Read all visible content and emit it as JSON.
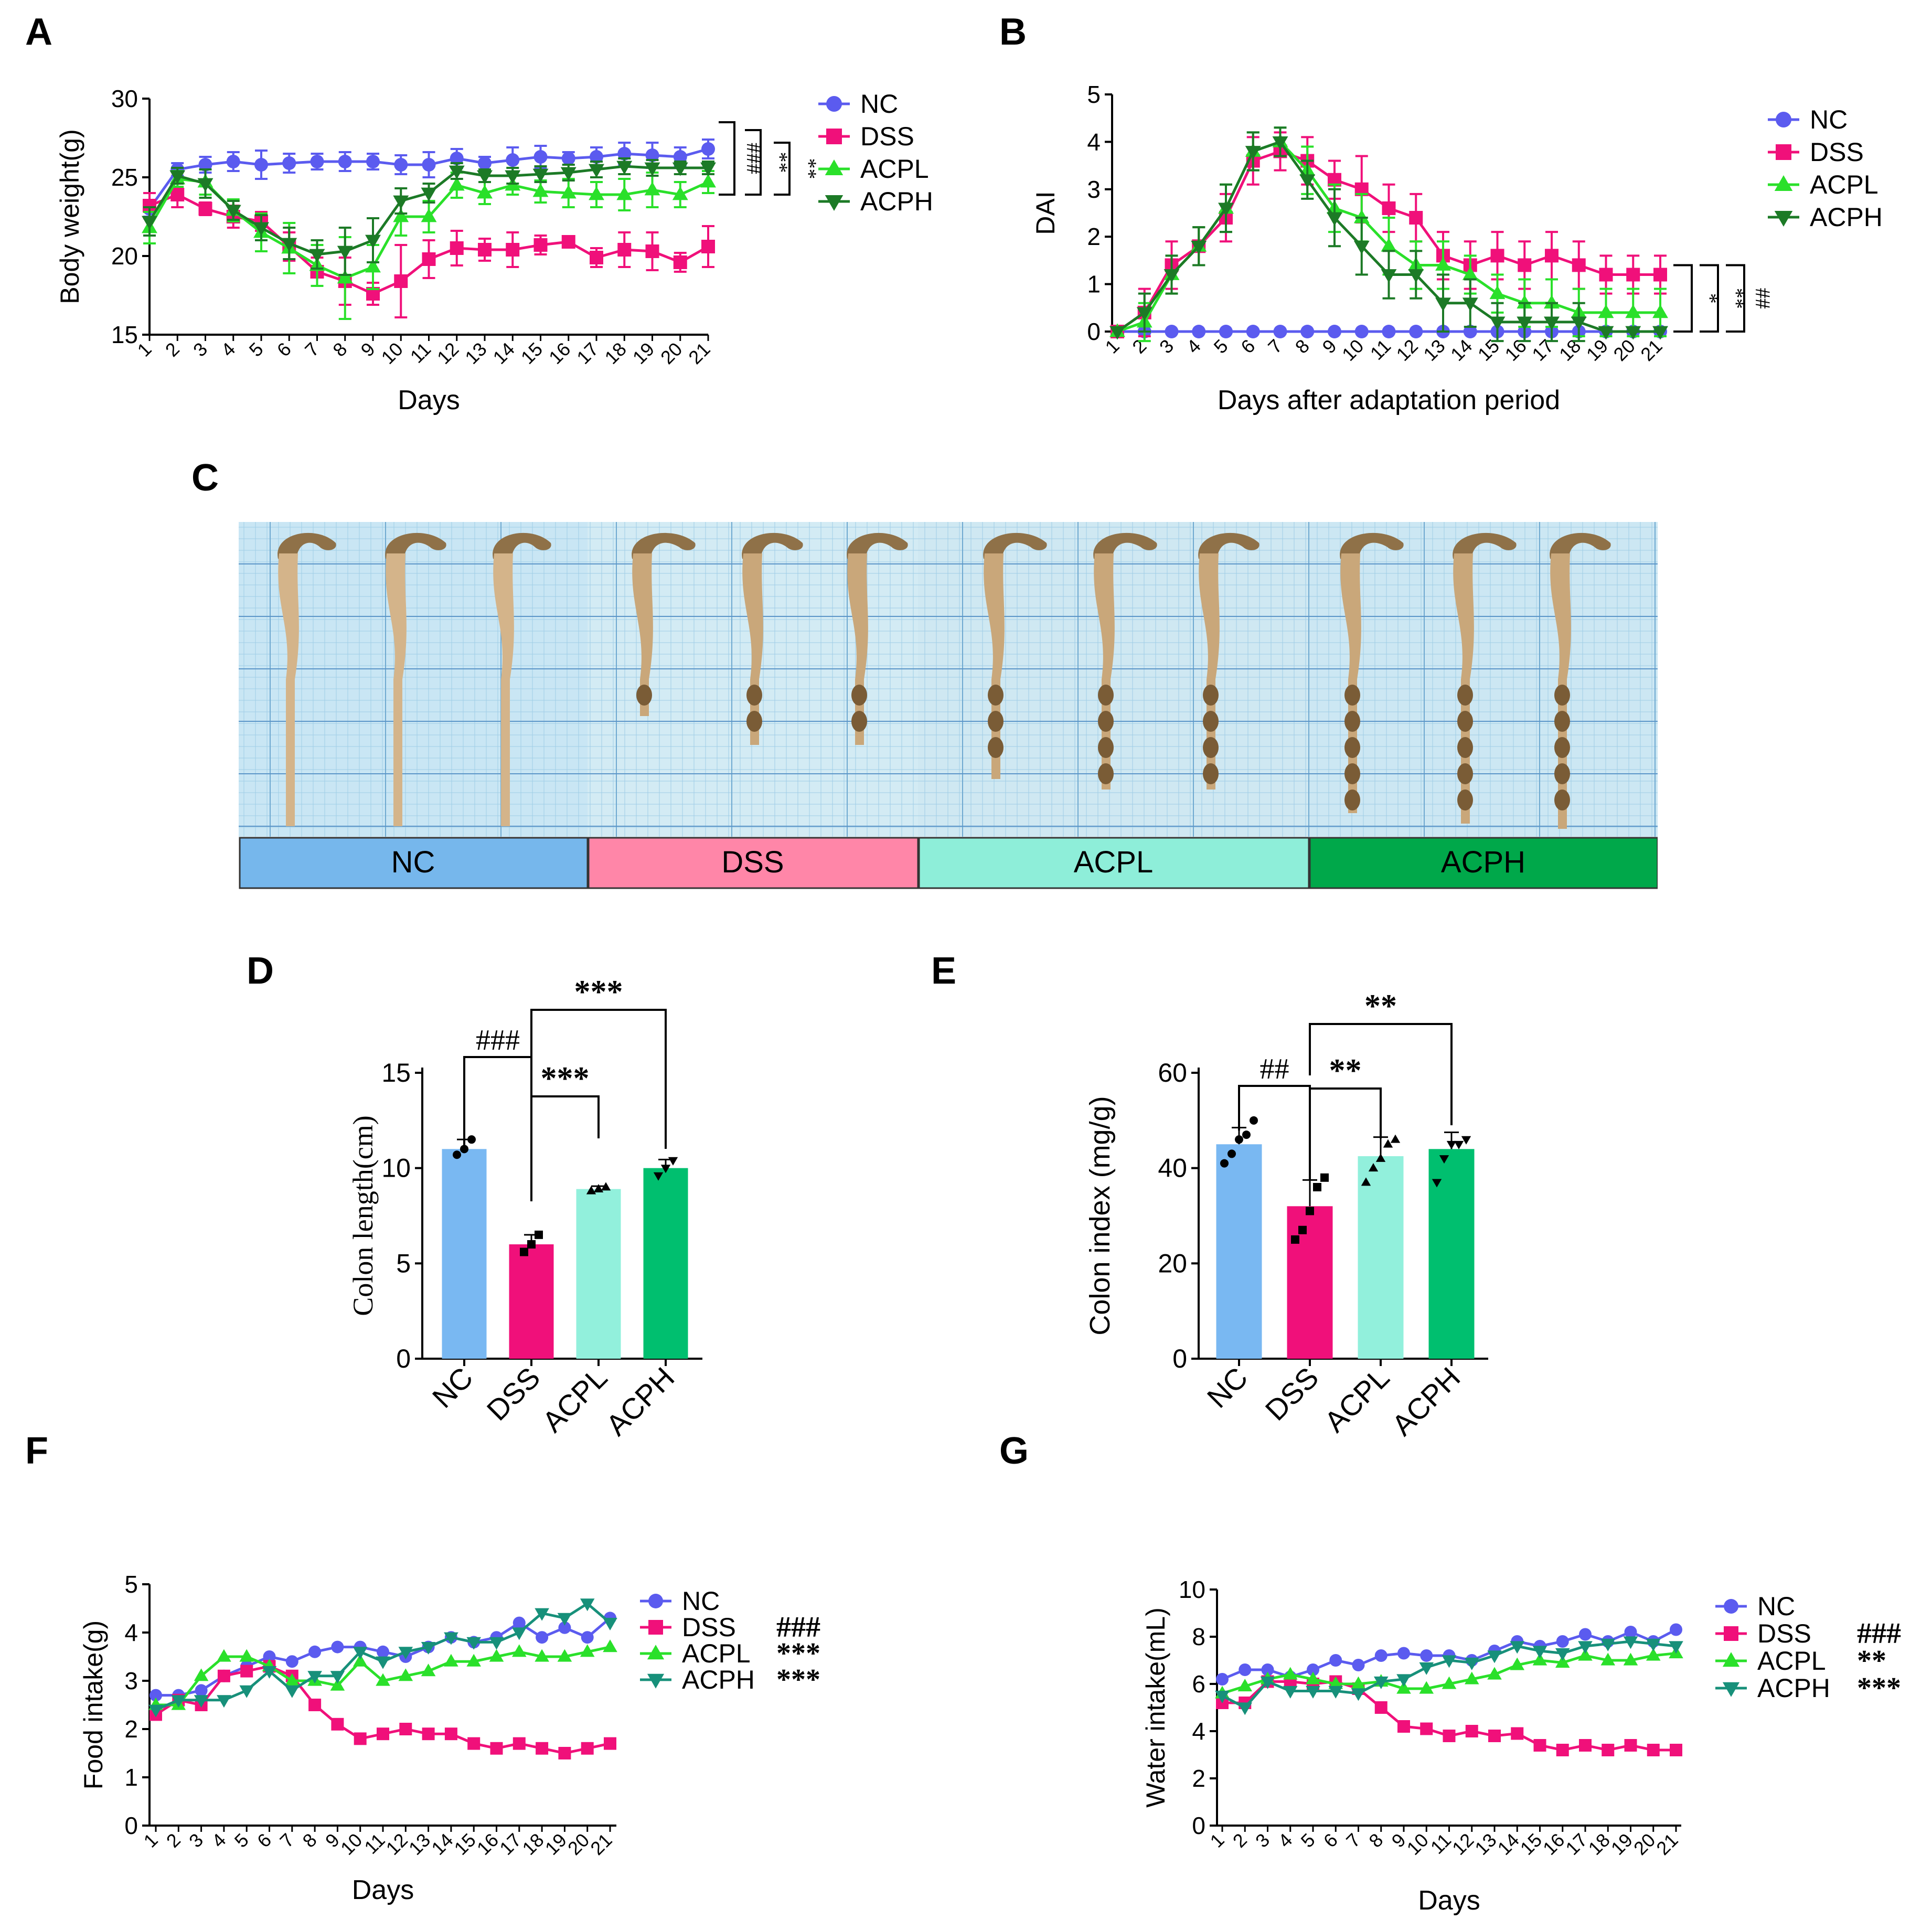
{
  "panel_letters": {
    "a": "A",
    "b": "B",
    "c": "C",
    "d": "D",
    "e": "E",
    "f": "F",
    "g": "G"
  },
  "colors": {
    "NC": "#5b5bef",
    "DSS": "#f0107a",
    "ACPL": "#2ae02a",
    "ACPH": "#1c7a26",
    "bar_NC": "#79b8f2",
    "bar_DSS": "#f0107a",
    "bar_ACPL": "#92f0dc",
    "bar_ACPH": "#00bf6f",
    "line_F_ACPH": "#17907a",
    "line_G_ACPH": "#17907a"
  },
  "photo_legend": [
    "NC",
    "DSS",
    "ACPL",
    "ACPH"
  ],
  "photo_legend_colors": [
    "#76b7ec",
    "#ff86a8",
    "#8eeed9",
    "#00a84a"
  ],
  "chart_data": [
    {
      "id": "A",
      "type": "line",
      "ylabel": "Body weight(g)",
      "xlabel": "Days",
      "ylim": [
        15,
        30
      ],
      "yticks": [
        15,
        20,
        25,
        30
      ],
      "x": [
        1,
        2,
        3,
        4,
        5,
        6,
        7,
        8,
        9,
        10,
        11,
        12,
        13,
        14,
        15,
        16,
        17,
        18,
        19,
        20,
        21
      ],
      "series": [
        {
          "name": "NC",
          "marker": "circle",
          "values": [
            23.0,
            25.5,
            25.8,
            26.0,
            25.8,
            25.9,
            26.0,
            26.0,
            26.0,
            25.8,
            25.8,
            26.2,
            25.9,
            26.1,
            26.3,
            26.2,
            26.3,
            26.5,
            26.4,
            26.3,
            26.8
          ],
          "err": [
            0.5,
            0.4,
            0.5,
            0.6,
            0.9,
            0.6,
            0.5,
            0.6,
            0.5,
            0.6,
            0.8,
            0.6,
            0.4,
            0.8,
            0.7,
            0.4,
            0.6,
            0.7,
            0.8,
            0.6,
            0.6
          ]
        },
        {
          "name": "DSS",
          "marker": "square",
          "values": [
            23.2,
            23.9,
            23.0,
            22.5,
            22.2,
            20.6,
            19.0,
            18.4,
            17.6,
            18.4,
            19.8,
            20.5,
            20.4,
            20.4,
            20.7,
            20.9,
            19.9,
            20.4,
            20.3,
            19.6,
            20.6
          ],
          "err": [
            0.8,
            0.8,
            0.4,
            0.7,
            0.6,
            0.9,
            0.9,
            1.5,
            0.7,
            2.3,
            1.2,
            1.1,
            0.7,
            1.1,
            0.6,
            0.3,
            0.6,
            1.1,
            1.2,
            0.6,
            1.3
          ]
        },
        {
          "name": "ACPL",
          "marker": "triangle-up",
          "values": [
            21.8,
            24.9,
            24.7,
            22.9,
            21.5,
            20.5,
            19.4,
            18.6,
            19.3,
            22.5,
            22.5,
            24.5,
            24.0,
            24.5,
            24.1,
            24.0,
            23.9,
            23.9,
            24.2,
            23.9,
            24.7
          ],
          "err": [
            1.0,
            0.5,
            0.8,
            0.7,
            1.2,
            1.6,
            1.3,
            2.6,
            1.4,
            1.2,
            1.0,
            0.8,
            0.7,
            0.6,
            0.7,
            0.9,
            0.8,
            1.0,
            1.1,
            0.8,
            0.7
          ]
        },
        {
          "name": "ACPH",
          "marker": "triangle-down",
          "values": [
            22.2,
            25.1,
            24.6,
            22.9,
            21.8,
            20.8,
            20.1,
            20.3,
            21.0,
            23.5,
            24.0,
            25.4,
            25.1,
            25.1,
            25.2,
            25.3,
            25.5,
            25.7,
            25.6,
            25.6,
            25.6
          ],
          "err": [
            0.9,
            0.5,
            0.9,
            0.6,
            0.8,
            1.0,
            0.9,
            1.5,
            1.4,
            0.8,
            0.6,
            0.5,
            0.4,
            0.5,
            0.5,
            0.5,
            0.5,
            0.5,
            0.5,
            0.4,
            0.4
          ]
        }
      ],
      "sig": [
        "###",
        "**",
        "**"
      ]
    },
    {
      "id": "B",
      "type": "line",
      "ylabel": "DAI",
      "xlabel": "Days after adaptation period",
      "ylim": [
        0,
        5
      ],
      "yticks": [
        0,
        1,
        2,
        3,
        4,
        5
      ],
      "x": [
        1,
        2,
        3,
        4,
        5,
        6,
        7,
        8,
        9,
        10,
        11,
        12,
        13,
        14,
        15,
        16,
        17,
        18,
        19,
        20,
        21
      ],
      "series": [
        {
          "name": "NC",
          "marker": "circle",
          "values": [
            0,
            0,
            0,
            0,
            0,
            0,
            0,
            0,
            0,
            0,
            0,
            0,
            0,
            0,
            0,
            0,
            0,
            0,
            0,
            0,
            0
          ],
          "err": [
            0,
            0,
            0,
            0,
            0,
            0,
            0,
            0,
            0,
            0,
            0,
            0,
            0,
            0,
            0,
            0,
            0,
            0,
            0,
            0,
            0
          ]
        },
        {
          "name": "DSS",
          "marker": "square",
          "values": [
            0,
            0.4,
            1.4,
            1.8,
            2.4,
            3.6,
            3.8,
            3.6,
            3.2,
            3.0,
            2.6,
            2.4,
            1.6,
            1.4,
            1.6,
            1.4,
            1.6,
            1.4,
            1.2,
            1.2,
            1.2
          ],
          "err": [
            0,
            0.5,
            0.5,
            0.4,
            0.5,
            0.5,
            0.4,
            0.5,
            0.4,
            0.7,
            0.5,
            0.5,
            0.5,
            0.5,
            0.5,
            0.5,
            0.5,
            0.5,
            0.4,
            0.4,
            0.4
          ]
        },
        {
          "name": "ACPL",
          "marker": "triangle-up",
          "values": [
            0,
            0.2,
            1.2,
            1.8,
            2.6,
            3.8,
            4.0,
            3.4,
            2.6,
            2.4,
            1.8,
            1.4,
            1.4,
            1.2,
            0.8,
            0.6,
            0.6,
            0.4,
            0.4,
            0.4,
            0.4
          ],
          "err": [
            0,
            0.4,
            0.4,
            0.4,
            0.5,
            0.4,
            0.3,
            0.5,
            0.5,
            0.5,
            0.6,
            0.5,
            0.5,
            0.4,
            0.4,
            0.5,
            0.5,
            0.5,
            0.5,
            0.5,
            0.5
          ]
        },
        {
          "name": "ACPH",
          "marker": "triangle-down",
          "values": [
            0,
            0.4,
            1.2,
            1.8,
            2.6,
            3.8,
            4.0,
            3.2,
            2.4,
            1.8,
            1.2,
            1.2,
            0.6,
            0.6,
            0.2,
            0.2,
            0.2,
            0.2,
            0,
            0,
            0
          ],
          "err": [
            0,
            0.4,
            0.4,
            0.4,
            0.5,
            0.4,
            0.3,
            0.4,
            0.6,
            0.6,
            0.5,
            0.5,
            0.6,
            0.5,
            0.4,
            0.4,
            0.4,
            0.4,
            0,
            0,
            0
          ]
        }
      ],
      "sig": [
        "*",
        "**",
        "##"
      ]
    },
    {
      "id": "D",
      "type": "bar",
      "ylabel": "Colon length(cm)",
      "categories": [
        "NC",
        "DSS",
        "ACPL",
        "ACPH"
      ],
      "values": [
        11.0,
        6.0,
        8.9,
        10.0
      ],
      "err": [
        0.5,
        0.5,
        0.15,
        0.45
      ],
      "points": [
        [
          10.7,
          11.0,
          11.5
        ],
        [
          5.6,
          6.0,
          6.5
        ],
        [
          8.8,
          8.9,
          9.0
        ],
        [
          9.6,
          10.0,
          10.4
        ]
      ],
      "point_markers": [
        "circle",
        "square",
        "triangle-up",
        "triangle-down"
      ],
      "ylim": [
        0,
        15
      ],
      "yticks": [
        0,
        5,
        10,
        15
      ],
      "sig": {
        "top": "***",
        "left": "###",
        "mid": "***"
      }
    },
    {
      "id": "E",
      "type": "bar",
      "ylabel": "Colon index (mg/g)",
      "categories": [
        "NC",
        "DSS",
        "ACPL",
        "ACPH"
      ],
      "values": [
        45,
        32,
        42.5,
        44
      ],
      "err": [
        3.5,
        5.5,
        4,
        3.5
      ],
      "points": [
        [
          41,
          43,
          46,
          47,
          50
        ],
        [
          25,
          27,
          31,
          36,
          38
        ],
        [
          37,
          40,
          42,
          45,
          46
        ],
        [
          37,
          42,
          45,
          45,
          46
        ]
      ],
      "point_markers": [
        "circle",
        "square",
        "triangle-up",
        "triangle-down"
      ],
      "ylim": [
        0,
        60
      ],
      "yticks": [
        0,
        20,
        40,
        60
      ],
      "sig": {
        "top": "**",
        "left": "##",
        "mid": "**"
      }
    },
    {
      "id": "F",
      "type": "line",
      "ylabel": "Food intake(g)",
      "xlabel": "Days",
      "ylim": [
        0,
        5
      ],
      "yticks": [
        0,
        1,
        2,
        3,
        4,
        5
      ],
      "x": [
        1,
        2,
        3,
        4,
        5,
        6,
        7,
        8,
        9,
        10,
        11,
        12,
        13,
        14,
        15,
        16,
        17,
        18,
        19,
        20,
        21
      ],
      "series": [
        {
          "name": "NC",
          "marker": "circle",
          "values": [
            2.7,
            2.7,
            2.8,
            3.1,
            3.3,
            3.5,
            3.4,
            3.6,
            3.7,
            3.7,
            3.6,
            3.5,
            3.7,
            3.9,
            3.8,
            3.9,
            4.2,
            3.9,
            4.1,
            3.9,
            4.3
          ]
        },
        {
          "name": "DSS",
          "marker": "square",
          "values": [
            2.3,
            2.6,
            2.5,
            3.1,
            3.2,
            3.3,
            3.1,
            2.5,
            2.1,
            1.8,
            1.9,
            2.0,
            1.9,
            1.9,
            1.7,
            1.6,
            1.7,
            1.6,
            1.5,
            1.6,
            1.7
          ]
        },
        {
          "name": "ACPL",
          "marker": "triangle-up",
          "values": [
            2.5,
            2.5,
            3.1,
            3.5,
            3.5,
            3.3,
            3.0,
            3.0,
            2.9,
            3.4,
            3.0,
            3.1,
            3.2,
            3.4,
            3.4,
            3.5,
            3.6,
            3.5,
            3.5,
            3.6,
            3.7
          ]
        },
        {
          "name": "ACPH",
          "marker": "triangle-down",
          "values": [
            2.4,
            2.6,
            2.6,
            2.6,
            2.8,
            3.2,
            2.8,
            3.1,
            3.1,
            3.6,
            3.4,
            3.6,
            3.7,
            3.9,
            3.8,
            3.8,
            4.0,
            4.4,
            4.3,
            4.6,
            4.2
          ]
        }
      ],
      "legend_sig": [
        "",
        "###",
        "***",
        "***"
      ]
    },
    {
      "id": "G",
      "type": "line",
      "ylabel": "Water intake(mL)",
      "xlabel": "Days",
      "ylim": [
        0,
        10
      ],
      "yticks": [
        0,
        2,
        4,
        6,
        8,
        10
      ],
      "x": [
        1,
        2,
        3,
        4,
        5,
        6,
        7,
        8,
        9,
        10,
        11,
        12,
        13,
        14,
        15,
        16,
        17,
        18,
        19,
        20,
        21
      ],
      "series": [
        {
          "name": "NC",
          "marker": "circle",
          "values": [
            6.2,
            6.6,
            6.6,
            6.3,
            6.6,
            7.0,
            6.8,
            7.2,
            7.3,
            7.2,
            7.2,
            7.0,
            7.4,
            7.8,
            7.6,
            7.8,
            8.1,
            7.8,
            8.2,
            7.8,
            8.3
          ]
        },
        {
          "name": "DSS",
          "marker": "square",
          "values": [
            5.2,
            5.2,
            6.1,
            6.1,
            6.0,
            6.1,
            5.8,
            5.0,
            4.2,
            4.1,
            3.8,
            4.0,
            3.8,
            3.9,
            3.4,
            3.2,
            3.4,
            3.2,
            3.4,
            3.2,
            3.2
          ]
        },
        {
          "name": "ACPL",
          "marker": "triangle-up",
          "values": [
            5.6,
            5.9,
            6.2,
            6.4,
            6.2,
            6.0,
            6.0,
            6.1,
            5.8,
            5.8,
            6.0,
            6.2,
            6.4,
            6.8,
            7.0,
            6.9,
            7.2,
            7.0,
            7.0,
            7.2,
            7.3
          ]
        },
        {
          "name": "ACPH",
          "marker": "triangle-down",
          "values": [
            5.5,
            5.0,
            6.1,
            5.7,
            5.7,
            5.7,
            5.6,
            6.1,
            6.2,
            6.7,
            7.0,
            6.9,
            7.2,
            7.6,
            7.4,
            7.3,
            7.6,
            7.7,
            7.8,
            7.7,
            7.6
          ]
        }
      ],
      "legend_sig": [
        "",
        "###",
        "**",
        "***"
      ]
    }
  ]
}
